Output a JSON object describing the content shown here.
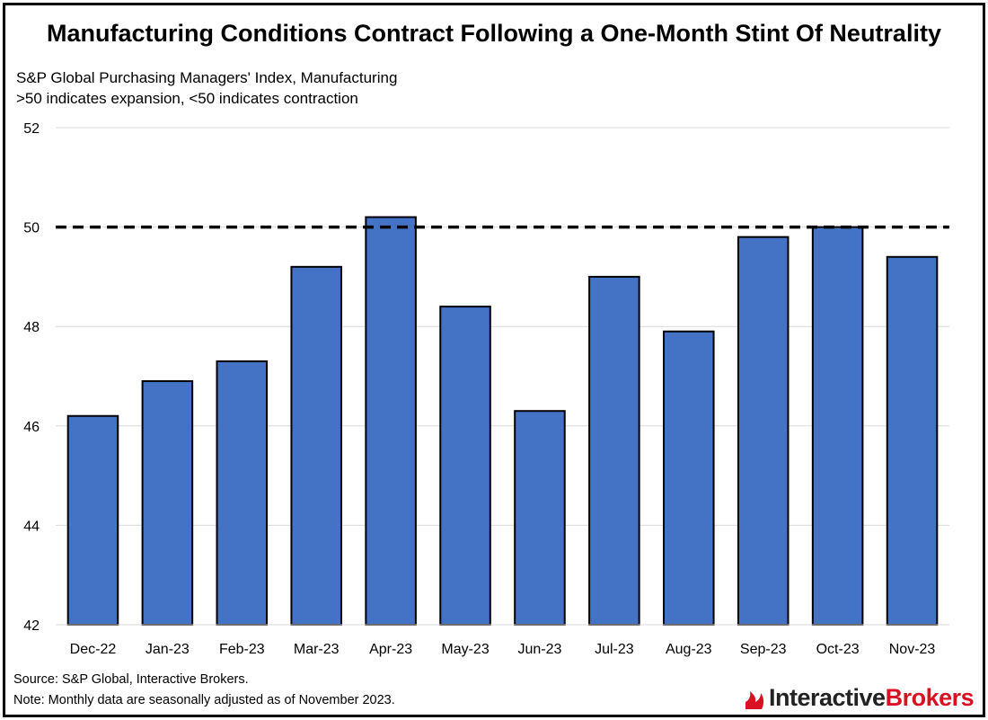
{
  "header": {
    "title": "Manufacturing Conditions Contract Following a One-Month Stint Of Neutrality",
    "subtitle_line1": "S&P Global Purchasing Managers' Index, Manufacturing",
    "subtitle_line2": ">50 indicates expansion, <50 indicates contraction"
  },
  "footer": {
    "source": "Source: S&P Global, Interactive Brokers.",
    "note": "Note: Monthly data are seasonally adjusted as of November 2023."
  },
  "logo": {
    "text_first": "Interactive",
    "text_second": "Brokers",
    "accent_color": "#d81222"
  },
  "chart_data": {
    "type": "bar",
    "categories": [
      "Dec-22",
      "Jan-23",
      "Feb-23",
      "Mar-23",
      "Apr-23",
      "May-23",
      "Jun-23",
      "Jul-23",
      "Aug-23",
      "Sep-23",
      "Oct-23",
      "Nov-23"
    ],
    "values": [
      46.2,
      46.9,
      47.3,
      49.2,
      50.2,
      48.4,
      46.3,
      49.0,
      47.9,
      49.8,
      50.0,
      49.4
    ],
    "ylim": [
      42,
      52
    ],
    "yticks": [
      "42",
      "44",
      "46",
      "48",
      "50",
      "52"
    ],
    "reference_line": 50,
    "reference_line_style": "dashed",
    "bar_color": "#4472c4",
    "grid": true,
    "xlabel": "",
    "ylabel": ""
  }
}
